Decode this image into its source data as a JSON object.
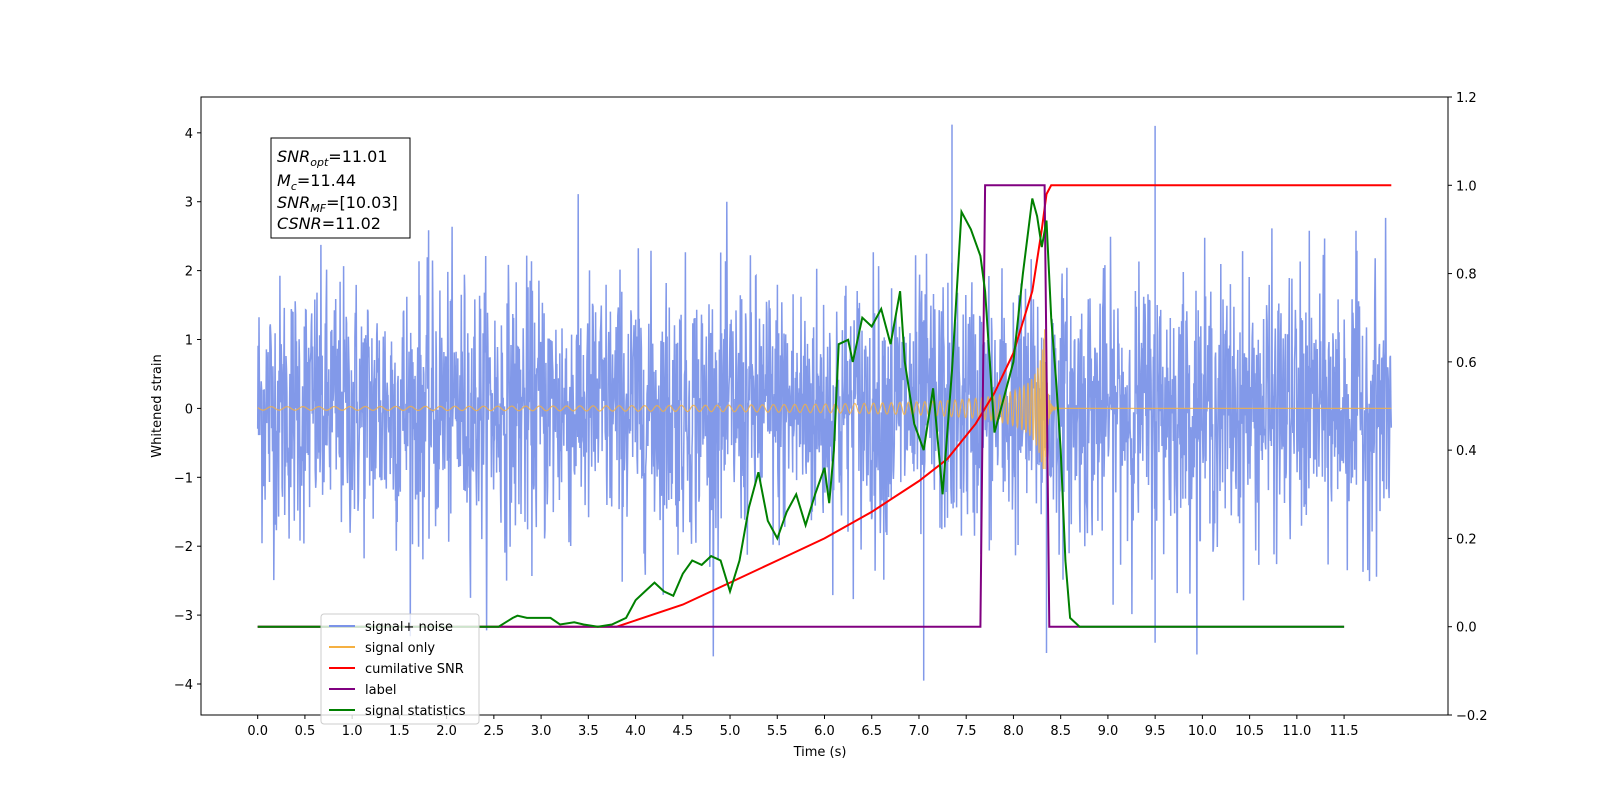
{
  "chart_data": {
    "type": "line",
    "xlabel": "Time (s)",
    "ylabel": "Whitened strain",
    "xlim": [
      -0.6,
      12.6
    ],
    "ylim": [
      -4.45,
      4.52
    ],
    "ylim_right": [
      -0.2,
      1.2
    ],
    "x_ticks": [
      0.0,
      0.5,
      1.0,
      1.5,
      2.0,
      2.5,
      3.0,
      3.5,
      4.0,
      4.5,
      5.0,
      5.5,
      6.0,
      6.5,
      7.0,
      7.5,
      8.0,
      8.5,
      9.0,
      9.5,
      10.0,
      10.5,
      11.0,
      11.5
    ],
    "x_tick_labels": [
      "0.0",
      "0.5",
      "1.0",
      "1.5",
      "2.0",
      "2.5",
      "3.0",
      "3.5",
      "4.0",
      "4.5",
      "5.0",
      "5.5",
      "6.0",
      "6.5",
      "7.0",
      "7.5",
      "8.0",
      "8.5",
      "9.0",
      "9.5",
      "10.0",
      "10.5",
      "11.0",
      "11.5"
    ],
    "y_ticks": [
      -4,
      -3,
      -2,
      -1,
      0,
      1,
      2,
      3,
      4
    ],
    "y_tick_labels": [
      "−4",
      "−3",
      "−2",
      "−1",
      "0",
      "1",
      "2",
      "3",
      "4"
    ],
    "y2_ticks": [
      -0.2,
      0.0,
      0.2,
      0.4,
      0.6,
      0.8,
      1.0,
      1.2
    ],
    "y2_tick_labels": [
      "−0.2",
      "0.0",
      "0.2",
      "0.4",
      "0.6",
      "0.8",
      "1.0",
      "1.2"
    ],
    "grid": false,
    "legend_position": "lower-left",
    "annotation": {
      "snr_opt": {
        "name": "SNR",
        "sub": "opt",
        "value": "=11.01"
      },
      "mc": {
        "name": "M",
        "sub": "c",
        "value": "=11.44"
      },
      "snr_mf": {
        "name": "SNR",
        "sub": "MF",
        "value": "=[10.03]"
      },
      "csnr": {
        "name": "CSNR",
        "sub": "",
        "value": "=11.02"
      }
    },
    "series": [
      {
        "name": "signal+ noise",
        "axis": "left",
        "color": "#7b93e8",
        "description_type": "noise",
        "x_range": [
          0.0,
          12.0
        ],
        "amplitude_envelope": 1.9,
        "notable_peaks": [
          {
            "x": 7.35,
            "y": 4.12
          },
          {
            "x": 9.5,
            "y": 4.1
          },
          {
            "x": 7.05,
            "y": -3.95
          },
          {
            "x": 8.35,
            "y": -3.55
          },
          {
            "x": 9.5,
            "y": -3.4
          }
        ]
      },
      {
        "name": "signal only",
        "axis": "left",
        "color": "#f5b041",
        "description_type": "chirp",
        "x_range": [
          0.0,
          12.0
        ],
        "merger_time": 8.33,
        "peak_amplitude": 1.15
      },
      {
        "name": "cumilative SNR",
        "axis": "right",
        "color": "#ff0000",
        "x": [
          0.0,
          3.8,
          4.5,
          5.0,
          5.5,
          6.0,
          6.5,
          7.0,
          7.3,
          7.6,
          7.8,
          8.0,
          8.2,
          8.3,
          8.35,
          8.4,
          12.0
        ],
        "y": [
          0.0,
          0.0,
          0.05,
          0.1,
          0.15,
          0.2,
          0.26,
          0.33,
          0.38,
          0.46,
          0.53,
          0.62,
          0.76,
          0.9,
          0.98,
          1.0,
          1.0
        ]
      },
      {
        "name": "label",
        "axis": "right",
        "color": "#800080",
        "x": [
          0.0,
          7.65,
          7.7,
          8.33,
          8.38,
          11.5
        ],
        "y": [
          0.0,
          0.0,
          1.0,
          1.0,
          0.0,
          0.0
        ]
      },
      {
        "name": "signal statistics",
        "axis": "right",
        "color": "#008000",
        "x": [
          0.0,
          2.55,
          2.7,
          2.75,
          2.85,
          3.0,
          3.1,
          3.2,
          3.35,
          3.45,
          3.6,
          3.75,
          3.9,
          4.0,
          4.1,
          4.2,
          4.3,
          4.4,
          4.5,
          4.6,
          4.7,
          4.8,
          4.9,
          5.0,
          5.1,
          5.2,
          5.3,
          5.4,
          5.5,
          5.6,
          5.7,
          5.8,
          5.9,
          6.0,
          6.05,
          6.1,
          6.15,
          6.25,
          6.3,
          6.4,
          6.5,
          6.6,
          6.7,
          6.8,
          6.85,
          6.95,
          7.05,
          7.15,
          7.25,
          7.35,
          7.45,
          7.55,
          7.65,
          7.7,
          7.8,
          7.9,
          8.0,
          8.1,
          8.2,
          8.25,
          8.3,
          8.35,
          8.4,
          8.45,
          8.5,
          8.55,
          8.6,
          8.7,
          9.5,
          11.5
        ],
        "y": [
          0.0,
          0.0,
          0.02,
          0.025,
          0.02,
          0.02,
          0.02,
          0.005,
          0.01,
          0.005,
          0.0,
          0.005,
          0.02,
          0.06,
          0.08,
          0.1,
          0.08,
          0.07,
          0.12,
          0.15,
          0.14,
          0.16,
          0.15,
          0.08,
          0.15,
          0.27,
          0.35,
          0.24,
          0.2,
          0.26,
          0.3,
          0.23,
          0.3,
          0.36,
          0.28,
          0.4,
          0.64,
          0.65,
          0.6,
          0.7,
          0.68,
          0.72,
          0.64,
          0.76,
          0.6,
          0.46,
          0.4,
          0.54,
          0.3,
          0.58,
          0.94,
          0.9,
          0.84,
          0.76,
          0.44,
          0.52,
          0.6,
          0.8,
          0.97,
          0.93,
          0.86,
          0.92,
          0.7,
          0.56,
          0.4,
          0.15,
          0.02,
          0.0,
          0.0,
          0.0
        ]
      }
    ]
  }
}
